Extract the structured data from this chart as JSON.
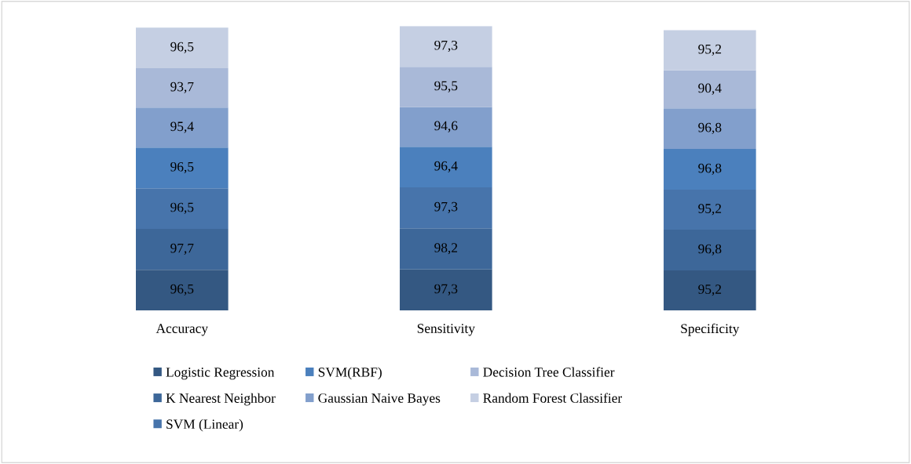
{
  "chart_data": {
    "type": "bar",
    "stacked": true,
    "legend": "bottom",
    "grid": false,
    "tick_labels": "x",
    "categories": [
      "Accuracy",
      "Sensitivity",
      "Specificity"
    ],
    "series": [
      {
        "name": "Logistic Regression",
        "color": "#345882",
        "values": [
          96.5,
          97.3,
          95.2
        ],
        "value_labels": [
          "96,5",
          "97,3",
          "95,2"
        ]
      },
      {
        "name": "K Nearest Neighbor",
        "color": "#3d6799",
        "values": [
          97.7,
          98.2,
          96.8
        ],
        "value_labels": [
          "97,7",
          "98,2",
          "96,8"
        ]
      },
      {
        "name": "SVM (Linear)",
        "color": "#4774ab",
        "values": [
          96.5,
          97.3,
          95.2
        ],
        "value_labels": [
          "96,5",
          "97,3",
          "95,2"
        ]
      },
      {
        "name": "SVM(RBF)",
        "color": "#4b80bd",
        "values": [
          96.5,
          96.4,
          96.8
        ],
        "value_labels": [
          "96,5",
          "96,4",
          "96,8"
        ]
      },
      {
        "name": "Gaussian Naive Bayes",
        "color": "#829fcc",
        "values": [
          95.4,
          94.6,
          96.8
        ],
        "value_labels": [
          "95,4",
          "94,6",
          "96,8"
        ]
      },
      {
        "name": "Decision Tree Classifier",
        "color": "#a9b9d8",
        "values": [
          93.7,
          95.5,
          90.4
        ],
        "value_labels": [
          "93,7",
          "95,5",
          "90,4"
        ]
      },
      {
        "name": "Random Forest Classifier",
        "color": "#c5cfe3",
        "values": [
          96.5,
          97.3,
          95.2
        ],
        "value_labels": [
          "96,5",
          "97,3",
          "95,2"
        ]
      }
    ]
  }
}
